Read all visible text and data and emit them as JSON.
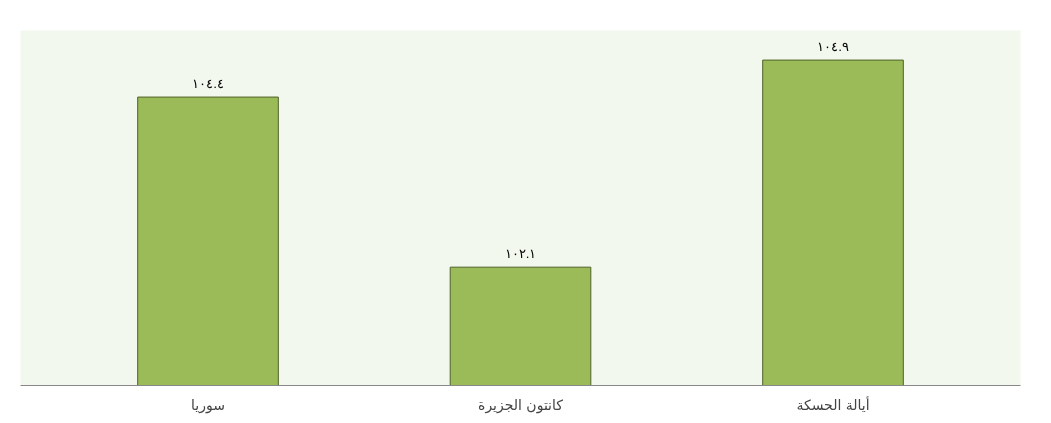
{
  "chart_data": {
    "type": "bar",
    "categories": [
      "سوريا",
      "كانتون الجزيرة",
      "أيالة الحسكة"
    ],
    "values": [
      104.4,
      102.1,
      104.9
    ],
    "value_labels": [
      "١٠٤.٤",
      "١٠٢.١",
      "١٠٤.٩"
    ],
    "color": "#9bbb59",
    "ylim": [
      100.5,
      105.3
    ],
    "grid": false
  }
}
